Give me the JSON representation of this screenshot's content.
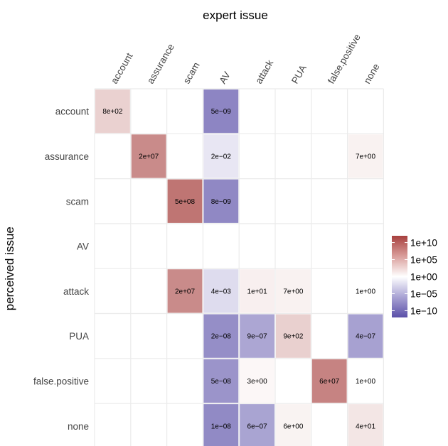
{
  "chart_data": {
    "type": "heatmap",
    "title": "expert issue",
    "xlabel": "expert issue",
    "ylabel": "perceived issue",
    "x_categories": [
      "account",
      "assurance",
      "scam",
      "AV",
      "attack",
      "PUA",
      "false.positive",
      "none"
    ],
    "y_categories": [
      "account",
      "assurance",
      "scam",
      "AV",
      "attack",
      "PUA",
      "false.positive",
      "none"
    ],
    "color_scale": "log10, diverging blue-white-red",
    "colors": {
      "low": "#5a4fa8",
      "mid": "#ffffff",
      "high": "#a7403e"
    },
    "scale_range_log10": [
      -12,
      12
    ],
    "cells": [
      {
        "row": "account",
        "col": "account",
        "value": 800,
        "label": "8e+02"
      },
      {
        "row": "account",
        "col": "AV",
        "value": 5e-09,
        "label": "5e−09"
      },
      {
        "row": "assurance",
        "col": "assurance",
        "value": 20000000.0,
        "label": "2e+07"
      },
      {
        "row": "assurance",
        "col": "AV",
        "value": 0.02,
        "label": "2e−02"
      },
      {
        "row": "assurance",
        "col": "none",
        "value": 7,
        "label": "7e+00"
      },
      {
        "row": "scam",
        "col": "scam",
        "value": 500000000.0,
        "label": "5e+08"
      },
      {
        "row": "scam",
        "col": "AV",
        "value": 8e-09,
        "label": "8e−09"
      },
      {
        "row": "attack",
        "col": "scam",
        "value": 20000000.0,
        "label": "2e+07"
      },
      {
        "row": "attack",
        "col": "AV",
        "value": 0.004,
        "label": "4e−03"
      },
      {
        "row": "attack",
        "col": "attack",
        "value": 10,
        "label": "1e+01"
      },
      {
        "row": "attack",
        "col": "PUA",
        "value": 7,
        "label": "7e+00"
      },
      {
        "row": "attack",
        "col": "none",
        "value": 1,
        "label": "1e+00"
      },
      {
        "row": "PUA",
        "col": "AV",
        "value": 2e-08,
        "label": "2e−08"
      },
      {
        "row": "PUA",
        "col": "attack",
        "value": 9e-07,
        "label": "9e−07"
      },
      {
        "row": "PUA",
        "col": "PUA",
        "value": 900,
        "label": "9e+02"
      },
      {
        "row": "PUA",
        "col": "none",
        "value": 4e-07,
        "label": "4e−07"
      },
      {
        "row": "false.positive",
        "col": "AV",
        "value": 5e-08,
        "label": "5e−08"
      },
      {
        "row": "false.positive",
        "col": "attack",
        "value": 3,
        "label": "3e+00"
      },
      {
        "row": "false.positive",
        "col": "false.positive",
        "value": 60000000.0,
        "label": "6e+07"
      },
      {
        "row": "false.positive",
        "col": "none",
        "value": 1,
        "label": "1e+00"
      },
      {
        "row": "none",
        "col": "AV",
        "value": 1e-08,
        "label": "1e−08"
      },
      {
        "row": "none",
        "col": "attack",
        "value": 6e-07,
        "label": "6e−07"
      },
      {
        "row": "none",
        "col": "PUA",
        "value": 6,
        "label": "6e+00"
      },
      {
        "row": "none",
        "col": "none",
        "value": 40,
        "label": "4e+01"
      }
    ],
    "legend": {
      "position": "right",
      "breaks": [
        {
          "value": 10000000000.0,
          "label": "1e+10"
        },
        {
          "value": 100000.0,
          "label": "1e+05"
        },
        {
          "value": 1,
          "label": "1e+00"
        },
        {
          "value": 1e-05,
          "label": "1e−05"
        },
        {
          "value": 1e-10,
          "label": "1e−10"
        }
      ]
    },
    "grid": true
  }
}
